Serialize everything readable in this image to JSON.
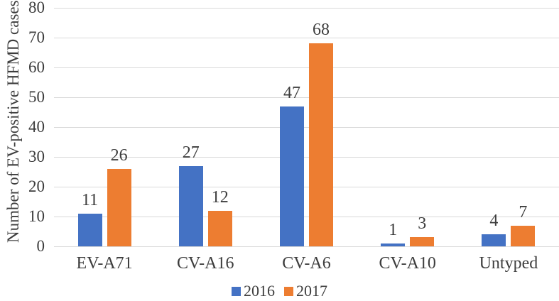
{
  "chart_data": {
    "type": "bar",
    "title": "",
    "categories": [
      "EV-A71",
      "CV-A16",
      "CV-A6",
      "CV-A10",
      "Untyped"
    ],
    "series": [
      {
        "name": "2016",
        "color": "#4472C4",
        "values": [
          11,
          27,
          47,
          1,
          4
        ]
      },
      {
        "name": "2017",
        "color": "#ED7D31",
        "values": [
          26,
          12,
          68,
          3,
          7
        ]
      }
    ],
    "xlabel": "",
    "ylabel": "Number of EV-positive HFMD cases",
    "ylim": [
      0,
      80
    ],
    "ytick_step": 10,
    "yticks": [
      0,
      10,
      20,
      30,
      40,
      50,
      60,
      70,
      80
    ],
    "grid": true,
    "data_labels": true,
    "legend_position": "bottom-center"
  },
  "colors": {
    "series_2016": "#4472C4",
    "series_2017": "#ED7D31",
    "gridline": "#D9D9D9",
    "text": "#3D3D3D",
    "background": "#FFFFFF"
  }
}
